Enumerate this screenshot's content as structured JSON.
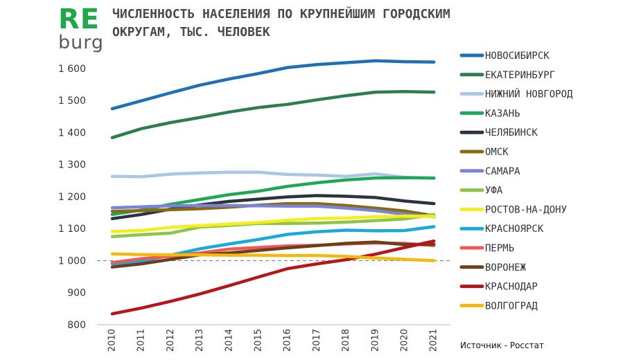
{
  "logo": {
    "top": "RE",
    "bottom": "burg",
    "top_color": "#1fa74a"
  },
  "title": {
    "line1": "ЧИСЛЕННОСТЬ НАСЕЛЕНИЯ ПО КРУПНЕЙШИМ ГОРОДСКИМ",
    "line2": "ОКРУГАМ, ТЫС. ЧЕЛОВЕК"
  },
  "source": "Источник - Росстат",
  "chart_data": {
    "type": "line",
    "title": "ЧИСЛЕННОСТЬ НАСЕЛЕНИЯ ПО КРУПНЕЙШИМ ГОРОДСКИМ ОКРУГАМ, ТЫС. ЧЕЛОВЕК",
    "xlabel": "",
    "ylabel": "",
    "x": [
      "2010",
      "2011",
      "2012",
      "2013",
      "2014",
      "2015",
      "2016",
      "2017",
      "2018",
      "2019",
      "2020",
      "2021"
    ],
    "ylim": [
      800,
      1640
    ],
    "yticks": [
      800,
      900,
      1000,
      1100,
      1200,
      1300,
      1400,
      1500,
      1600
    ],
    "ytick_labels": [
      "800",
      "900",
      "1 000",
      "1 100",
      "1 200",
      "1 300",
      "1 400",
      "1 500",
      "1 600"
    ],
    "reference_line": 1000,
    "grid": false,
    "legend_position": "right",
    "series": [
      {
        "name": "НОВОСИБИРСК",
        "color": "#1f6fb4",
        "values": [
          1474,
          1499,
          1524,
          1548,
          1567,
          1584,
          1603,
          1612,
          1618,
          1624,
          1621,
          1620
        ]
      },
      {
        "name": "ЕКАТЕРИНБУРГ",
        "color": "#2e7d4f",
        "values": [
          1384,
          1412,
          1431,
          1447,
          1464,
          1478,
          1488,
          1502,
          1515,
          1526,
          1528,
          1526
        ]
      },
      {
        "name": "НИЖНИЙ НОВГОРОД",
        "color": "#a9c6e4",
        "values": [
          1263,
          1262,
          1270,
          1274,
          1276,
          1276,
          1269,
          1267,
          1263,
          1271,
          1260,
          1257
        ]
      },
      {
        "name": "КАЗАНЬ",
        "color": "#1ea856",
        "values": [
          1144,
          1158,
          1176,
          1191,
          1206,
          1217,
          1232,
          1243,
          1252,
          1258,
          1259,
          1258
        ]
      },
      {
        "name": "ЧЕЛЯБИНСК",
        "color": "#2a3440",
        "values": [
          1131,
          1144,
          1161,
          1174,
          1185,
          1192,
          1199,
          1203,
          1201,
          1197,
          1186,
          1178
        ]
      },
      {
        "name": "ОМСК",
        "color": "#8a6a10",
        "values": [
          1154,
          1156,
          1159,
          1162,
          1167,
          1173,
          1178,
          1178,
          1172,
          1164,
          1155,
          1140
        ]
      },
      {
        "name": "САМАРА",
        "color": "#7b82dc",
        "values": [
          1165,
          1168,
          1171,
          1172,
          1172,
          1171,
          1170,
          1170,
          1164,
          1156,
          1145,
          1137
        ]
      },
      {
        "name": "УФА",
        "color": "#8cc54a",
        "values": [
          1075,
          1081,
          1086,
          1105,
          1110,
          1116,
          1116,
          1117,
          1120,
          1125,
          1130,
          1144
        ]
      },
      {
        "name": "РОСТОВ-НА-ДОНУ",
        "color": "#f5ee1c",
        "values": [
          1091,
          1094,
          1104,
          1109,
          1114,
          1119,
          1126,
          1131,
          1133,
          1137,
          1139,
          1138
        ]
      },
      {
        "name": "КРАСНОЯРСК",
        "color": "#19a9dc",
        "values": [
          990,
          998,
          1017,
          1037,
          1052,
          1066,
          1082,
          1090,
          1095,
          1093,
          1094,
          1106
        ]
      },
      {
        "name": "ПЕРМЬ",
        "color": "#ec5a5a",
        "values": [
          994,
          1006,
          1014,
          1024,
          1036,
          1041,
          1046,
          1048,
          1052,
          1055,
          1054,
          1047
        ]
      },
      {
        "name": "ВОРОНЕЖ",
        "color": "#6e3e1c",
        "values": [
          980,
          990,
          1004,
          1018,
          1024,
          1032,
          1040,
          1047,
          1054,
          1058,
          1050,
          1051
        ]
      },
      {
        "name": "КРАСНОДАР",
        "color": "#b5161b",
        "values": [
          834,
          852,
          873,
          896,
          922,
          949,
          975,
          990,
          1003,
          1020,
          1041,
          1061
        ]
      },
      {
        "name": "ВОЛГОГРАД",
        "color": "#f2b90f",
        "values": [
          1021,
          1019,
          1018,
          1018,
          1017,
          1017,
          1016,
          1016,
          1013,
          1008,
          1004,
          1000
        ]
      }
    ]
  }
}
